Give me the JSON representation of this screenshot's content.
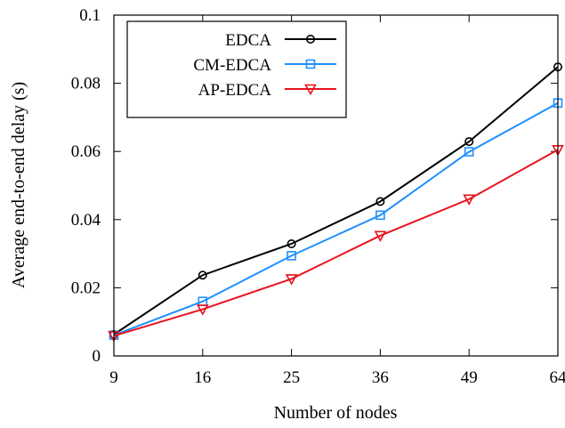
{
  "chart_data": {
    "type": "line",
    "title": "",
    "xlabel": "Number of nodes",
    "ylabel": "Average end-to-end delay (s)",
    "categories": [
      "9",
      "16",
      "25",
      "36",
      "49",
      "64"
    ],
    "ylim": [
      0,
      0.1
    ],
    "yticks": [
      {
        "value": 0,
        "label": "0"
      },
      {
        "value": 0.02,
        "label": "0.02"
      },
      {
        "value": 0.04,
        "label": "0.04"
      },
      {
        "value": 0.06,
        "label": "0.06"
      },
      {
        "value": 0.08,
        "label": "0.08"
      },
      {
        "value": 0.1,
        "label": "0.1"
      }
    ],
    "grid": false,
    "legend_position": "top-left",
    "series": [
      {
        "name": "EDCA",
        "color": "#000000",
        "marker": "circle",
        "values": [
          0.0063,
          0.0237,
          0.0329,
          0.0453,
          0.0629,
          0.0848
        ]
      },
      {
        "name": "CM-EDCA",
        "color": "#1e90ff",
        "marker": "square",
        "values": [
          0.0061,
          0.016,
          0.0294,
          0.0413,
          0.0599,
          0.0742
        ]
      },
      {
        "name": "AP-EDCA",
        "color": "#e8141e",
        "marker": "triangle-down",
        "values": [
          0.0059,
          0.0137,
          0.0226,
          0.0353,
          0.046,
          0.0605
        ]
      }
    ]
  }
}
